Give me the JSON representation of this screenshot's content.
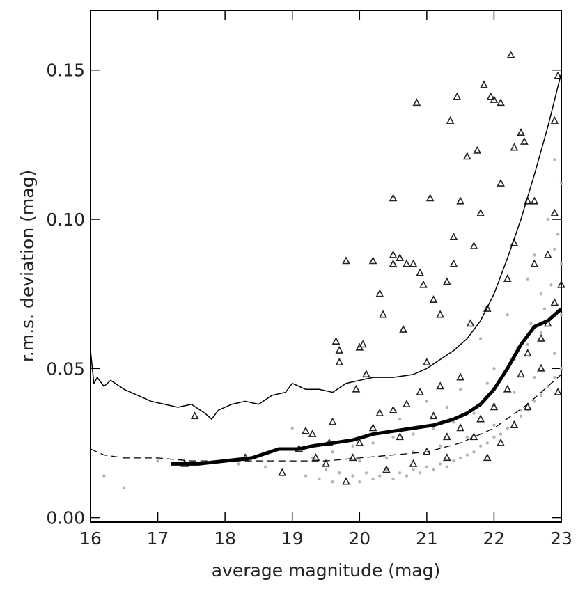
{
  "chart_data": {
    "type": "scatter",
    "xlabel": "average magnitude (mag)",
    "ylabel": "r.m.s. deviation (mag)",
    "xlim": [
      16,
      23
    ],
    "xticks": [
      16,
      17,
      18,
      19,
      20,
      21,
      22,
      23
    ],
    "ylim": [
      -0.0015,
      0.17
    ],
    "yticks": [
      {
        "value": 0,
        "label": "0.00"
      },
      {
        "value": 0.05,
        "label": "0.05"
      },
      {
        "value": 0.1,
        "label": "0.10"
      },
      {
        "value": 0.15,
        "label": "0.15"
      }
    ],
    "series": [
      {
        "style": "dots",
        "color": "#b4b4b4",
        "x": [
          19.2,
          19.4,
          19.5,
          19.6,
          19.7,
          19.8,
          19.9,
          20.0,
          20.1,
          20.2,
          20.3,
          20.4,
          20.5,
          20.6,
          20.7,
          20.8,
          20.9,
          21.0,
          21.1,
          21.2,
          21.3,
          21.4,
          21.5,
          21.6,
          21.7,
          21.8,
          21.9,
          22.0,
          22.1,
          22.2,
          22.3,
          22.4,
          22.5,
          22.6,
          22.7,
          22.8,
          22.9,
          23.0,
          19.3,
          19.6,
          19.9,
          20.2,
          20.5,
          20.8,
          21.1,
          21.4,
          21.7,
          22.0,
          22.3,
          22.6,
          22.9,
          20.0,
          20.4,
          20.8,
          21.2,
          21.6,
          22.0,
          22.4,
          22.8,
          21.0,
          21.5,
          22.0,
          22.5,
          23.0,
          22.7,
          22.9,
          22.6,
          22.8,
          23.0,
          21.8,
          22.2,
          22.5,
          22.9,
          18.6,
          18.2,
          17.0,
          16.5,
          16.2,
          19.0,
          20.6,
          21.3,
          21.9,
          22.3,
          22.7,
          23.0,
          22.95,
          22.85,
          22.75,
          22.55,
          22.35
        ],
        "values": [
          0.014,
          0.013,
          0.016,
          0.012,
          0.015,
          0.013,
          0.014,
          0.012,
          0.015,
          0.013,
          0.014,
          0.016,
          0.013,
          0.015,
          0.014,
          0.016,
          0.015,
          0.017,
          0.016,
          0.018,
          0.017,
          0.019,
          0.02,
          0.021,
          0.022,
          0.024,
          0.025,
          0.027,
          0.028,
          0.03,
          0.032,
          0.034,
          0.036,
          0.039,
          0.041,
          0.044,
          0.047,
          0.05,
          0.02,
          0.022,
          0.024,
          0.025,
          0.027,
          0.028,
          0.03,
          0.032,
          0.035,
          0.038,
          0.042,
          0.047,
          0.055,
          0.019,
          0.02,
          0.022,
          0.024,
          0.027,
          0.031,
          0.036,
          0.044,
          0.039,
          0.043,
          0.05,
          0.058,
          0.068,
          0.075,
          0.09,
          0.088,
          0.1,
          0.112,
          0.06,
          0.068,
          0.08,
          0.12,
          0.017,
          0.018,
          0.019,
          0.01,
          0.014,
          0.03,
          0.033,
          0.037,
          0.045,
          0.053,
          0.062,
          0.085,
          0.095,
          0.078,
          0.07,
          0.065,
          0.057
        ]
      },
      {
        "style": "triangles",
        "color": "#222222",
        "x": [
          17.55,
          18.3,
          17.4,
          18.85,
          19.1,
          19.2,
          19.3,
          19.35,
          19.5,
          19.55,
          19.6,
          19.65,
          19.7,
          19.7,
          19.8,
          19.9,
          19.95,
          20.0,
          20.05,
          20.1,
          20.2,
          20.3,
          20.35,
          20.5,
          20.5,
          20.5,
          20.6,
          20.65,
          20.7,
          20.8,
          20.85,
          20.9,
          20.95,
          21.0,
          21.05,
          21.1,
          21.2,
          21.3,
          21.35,
          21.4,
          21.45,
          21.5,
          21.4,
          21.6,
          21.65,
          21.7,
          21.75,
          21.8,
          21.85,
          21.95,
          22.0,
          22.1,
          22.1,
          22.25,
          22.3,
          22.4,
          22.45,
          22.5,
          22.6,
          22.9,
          22.95,
          22.9,
          22.8,
          22.6,
          22.3,
          22.2,
          21.9,
          21.5,
          21.2,
          20.9,
          20.7,
          20.5,
          20.3,
          20.2,
          20.0,
          20.4,
          20.8,
          21.0,
          21.3,
          21.5,
          21.8,
          22.0,
          22.2,
          22.4,
          22.5,
          22.7,
          22.8,
          22.9,
          23.0,
          22.95,
          22.7,
          22.5,
          22.3,
          22.1,
          21.9,
          21.7,
          21.3,
          21.1,
          20.6,
          19.8
        ],
        "values": [
          0.034,
          0.02,
          0.018,
          0.015,
          0.023,
          0.029,
          0.028,
          0.02,
          0.018,
          0.025,
          0.032,
          0.059,
          0.056,
          0.052,
          0.086,
          0.02,
          0.043,
          0.057,
          0.058,
          0.048,
          0.086,
          0.075,
          0.068,
          0.107,
          0.088,
          0.085,
          0.087,
          0.063,
          0.085,
          0.085,
          0.139,
          0.082,
          0.078,
          0.052,
          0.107,
          0.073,
          0.068,
          0.079,
          0.133,
          0.094,
          0.141,
          0.106,
          0.085,
          0.121,
          0.065,
          0.091,
          0.123,
          0.102,
          0.145,
          0.141,
          0.14,
          0.139,
          0.112,
          0.155,
          0.124,
          0.129,
          0.126,
          0.106,
          0.106,
          0.133,
          0.148,
          0.102,
          0.088,
          0.085,
          0.092,
          0.08,
          0.07,
          0.047,
          0.044,
          0.042,
          0.038,
          0.036,
          0.035,
          0.03,
          0.025,
          0.016,
          0.018,
          0.022,
          0.027,
          0.03,
          0.033,
          0.037,
          0.043,
          0.048,
          0.055,
          0.06,
          0.065,
          0.072,
          0.078,
          0.042,
          0.05,
          0.037,
          0.031,
          0.025,
          0.02,
          0.027,
          0.02,
          0.034,
          0.027,
          0.012
        ]
      },
      {
        "style": "dashed",
        "color": "#000000",
        "x": [
          16.0,
          16.2,
          16.5,
          17.0,
          17.5,
          18.0,
          18.5,
          19.0,
          19.5,
          20.0,
          20.5,
          21.0,
          21.5,
          22.0,
          22.5,
          23.0
        ],
        "values": [
          0.023,
          0.021,
          0.02,
          0.02,
          0.019,
          0.019,
          0.019,
          0.019,
          0.019,
          0.02,
          0.021,
          0.022,
          0.025,
          0.03,
          0.038,
          0.048
        ]
      },
      {
        "style": "line",
        "color": "#000000",
        "x": [
          16.0,
          16.05,
          16.1,
          16.2,
          16.3,
          16.5,
          16.7,
          16.9,
          17.1,
          17.3,
          17.5,
          17.7,
          17.8,
          17.9,
          18.1,
          18.3,
          18.5,
          18.7,
          18.9,
          19.0,
          19.2,
          19.4,
          19.6,
          19.8,
          20.0,
          20.2,
          20.5,
          20.8,
          21.0,
          21.2,
          21.4,
          21.6,
          21.8,
          22.0,
          22.2,
          22.4,
          22.6,
          22.8,
          23.0
        ],
        "values": [
          0.056,
          0.045,
          0.047,
          0.044,
          0.046,
          0.043,
          0.041,
          0.039,
          0.038,
          0.037,
          0.038,
          0.035,
          0.033,
          0.036,
          0.038,
          0.039,
          0.038,
          0.041,
          0.042,
          0.045,
          0.043,
          0.043,
          0.042,
          0.045,
          0.046,
          0.047,
          0.047,
          0.048,
          0.05,
          0.053,
          0.056,
          0.06,
          0.066,
          0.075,
          0.087,
          0.1,
          0.115,
          0.131,
          0.149
        ]
      },
      {
        "style": "thick",
        "color": "#000000",
        "x": [
          17.2,
          17.6,
          18.0,
          18.4,
          18.8,
          19.1,
          19.3,
          19.6,
          19.9,
          20.2,
          20.5,
          20.8,
          21.1,
          21.4,
          21.6,
          21.8,
          22.0,
          22.2,
          22.4,
          22.6,
          22.8,
          23.0
        ],
        "values": [
          0.018,
          0.018,
          0.019,
          0.02,
          0.023,
          0.023,
          0.024,
          0.025,
          0.026,
          0.028,
          0.029,
          0.03,
          0.031,
          0.033,
          0.035,
          0.038,
          0.043,
          0.05,
          0.058,
          0.064,
          0.066,
          0.07
        ]
      }
    ]
  }
}
